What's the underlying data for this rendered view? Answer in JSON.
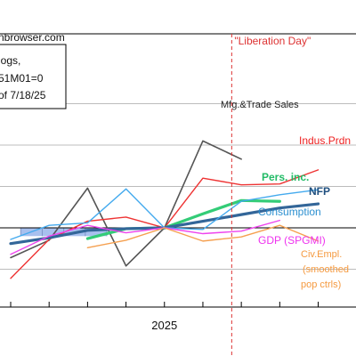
{
  "page": {
    "source_fragment": "nbrowser.com",
    "legend_lines": [
      "logs,",
      "51M01=0",
      "of 7/18/25"
    ],
    "event_label": "\"Liberation Day\""
  },
  "chart_data": {
    "type": "line",
    "x_ticks": [
      "2025"
    ],
    "ylim": [
      -7,
      18
    ],
    "x_range": [
      0,
      9.4
    ],
    "event_x": 5.75,
    "recession_band": {
      "y_range": [
        -1,
        0
      ],
      "x_range": [
        0.4,
        2.5
      ]
    },
    "series": [
      {
        "name": "Mfg.&Trade Sales",
        "color": "#555555",
        "width": 1.6,
        "x": [
          0,
          1,
          2,
          3,
          4,
          5,
          6
        ],
        "y": [
          -3.6,
          -1.5,
          4.8,
          -4.6,
          0,
          10.5,
          8.3
        ],
        "label_color": "#222222",
        "label_bold": false,
        "label_size": 11
      },
      {
        "name": "Indus.Prdn",
        "color": "#ee3333",
        "width": 1.4,
        "x": [
          0,
          1,
          2,
          3,
          4,
          5,
          6,
          7,
          8
        ],
        "y": [
          -6.1,
          -1.4,
          0.8,
          1.3,
          0,
          6.0,
          5.2,
          5.3,
          7.0
        ],
        "label_color": "#ee2222",
        "label_bold": false,
        "label_size": 12
      },
      {
        "name": "Pers. inc.",
        "color": "#33cc77",
        "width": 3.2,
        "x": [
          2,
          3,
          4,
          5,
          6,
          7
        ],
        "y": [
          -1.3,
          -0.1,
          0,
          1.7,
          3.3,
          3.2
        ],
        "label_color": "#22bb66",
        "label_bold": true,
        "label_size": 12
      },
      {
        "name": "NFP",
        "color": "#336699",
        "width": 3.2,
        "x": [
          0,
          1,
          2,
          3,
          4,
          5,
          6,
          7,
          8
        ],
        "y": [
          -1.9,
          -1.2,
          -0.3,
          -0.1,
          0,
          0.8,
          1.6,
          2.4,
          2.9
        ],
        "label_color": "#1f4f7f",
        "label_bold": true,
        "label_size": 12
      },
      {
        "name": "Consumption",
        "color": "#44aaee",
        "width": 1.4,
        "x": [
          0,
          1,
          2,
          3,
          4,
          5,
          6,
          7,
          8
        ],
        "y": [
          -1.4,
          0.3,
          0.6,
          4.7,
          0,
          -0.2,
          3.2,
          4.0,
          4.6
        ],
        "label_color": "#2b8fd0",
        "label_bold": false,
        "label_size": 12
      },
      {
        "name": "GDP (SPGMI)",
        "color": "#ee44ee",
        "width": 1.4,
        "x": [
          0,
          1,
          2,
          3,
          4,
          5,
          6,
          7
        ],
        "y": [
          -3.2,
          -1.0,
          0.3,
          -0.6,
          0,
          -0.7,
          -0.4,
          0.9
        ],
        "label_color": "#ee33ee",
        "label_bold": false,
        "label_size": 12
      },
      {
        "name": "Civ.Empl. (smoothed pop ctrls)",
        "color": "#f5a050",
        "width": 1.4,
        "x": [
          2,
          3,
          4,
          5,
          6,
          7,
          8
        ],
        "y": [
          -2.4,
          -1.5,
          0,
          -1.6,
          -1.1,
          0.3,
          -1.6
        ],
        "label_color": "#f59a40",
        "label_bold": false,
        "label_size": 11
      }
    ]
  }
}
